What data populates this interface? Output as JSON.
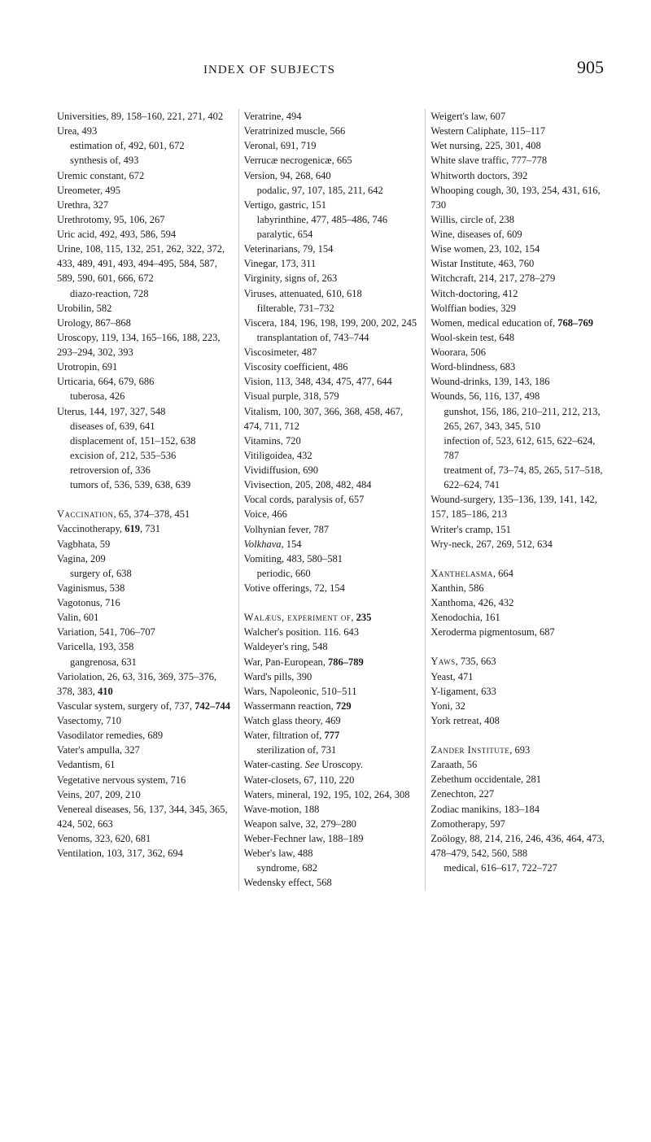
{
  "header": {
    "title": "INDEX OF SUBJECTS",
    "pageNumber": "905"
  },
  "columns": [
    [
      {
        "t": "Universities, 89, 158–160, 221, 271, 402"
      },
      {
        "t": "Urea, 493"
      },
      {
        "t": "estimation of, 492, 601, 672",
        "s": 1
      },
      {
        "t": "synthesis of, 493",
        "s": 1
      },
      {
        "t": "Uremic constant, 672"
      },
      {
        "t": "Ureometer, 495"
      },
      {
        "t": "Urethra, 327"
      },
      {
        "t": "Urethrotomy, 95, 106, 267"
      },
      {
        "t": "Uric acid, 492, 493, 586, 594"
      },
      {
        "t": "Urine, 108, 115, 132, 251, 262, 322, 372, 433, 489, 491, 493, 494–495, 584, 587, 589, 590, 601, 666, 672"
      },
      {
        "t": "diazo-reaction, 728",
        "s": 1
      },
      {
        "t": "Urobilin, 582"
      },
      {
        "t": "Urology, 867–868"
      },
      {
        "t": "Uroscopy, 119, 134, 165–166, 188, 223, 293–294, 302, 393"
      },
      {
        "t": "Urotropin, 691"
      },
      {
        "t": "Urticaria, 664, 679, 686"
      },
      {
        "t": "tuberosa, 426",
        "s": 1
      },
      {
        "t": "Uterus, 144, 197, 327, 548"
      },
      {
        "t": "diseases of, 639, 641",
        "s": 1
      },
      {
        "t": "displacement of, 151–152, 638",
        "s": 1
      },
      {
        "t": "excision of, 212, 535–536",
        "s": 1
      },
      {
        "t": "retroversion of, 336",
        "s": 1
      },
      {
        "t": "tumors of, 536, 539, 638, 639",
        "s": 1
      },
      {
        "gap": 1
      },
      {
        "t": "Vaccination, 65, 374–378, 451",
        "sc": "Vaccination"
      },
      {
        "t": "Vaccinotherapy, 619, 731",
        "bold": [
          "619"
        ]
      },
      {
        "t": "Vagbhata, 59"
      },
      {
        "t": "Vagina, 209"
      },
      {
        "t": "surgery of, 638",
        "s": 1
      },
      {
        "t": "Vaginismus, 538"
      },
      {
        "t": "Vagotonus, 716"
      },
      {
        "t": "Valin, 601"
      },
      {
        "t": "Variation, 541, 706–707"
      },
      {
        "t": "Varicella, 193, 358"
      },
      {
        "t": "gangrenosa, 631",
        "s": 1
      },
      {
        "t": "Variolation, 26, 63, 316, 369, 375–376, 378, 383, 410",
        "bold": [
          "410"
        ]
      },
      {
        "t": "Vascular system, surgery of, 737, 742–744",
        "bold": [
          "742–744"
        ]
      },
      {
        "t": "Vasectomy, 710"
      },
      {
        "t": "Vasodilator remedies, 689"
      },
      {
        "t": "Vater's ampulla, 327"
      },
      {
        "t": "Vedantism, 61"
      },
      {
        "t": "Vegetative nervous system, 716"
      },
      {
        "t": "Veins, 207, 209, 210"
      },
      {
        "t": "Venereal diseases, 56, 137, 344, 345, 365, 424, 502, 663"
      },
      {
        "t": "Venoms, 323, 620, 681"
      },
      {
        "t": "Ventilation, 103, 317, 362, 694"
      }
    ],
    [
      {
        "t": "Veratrine, 494"
      },
      {
        "t": "Veratrinized muscle, 566"
      },
      {
        "t": "Veronal, 691, 719"
      },
      {
        "t": "Verrucæ necrogenicæ, 665"
      },
      {
        "t": "Version, 94, 268, 640"
      },
      {
        "t": "podalic, 97, 107, 185, 211, 642",
        "s": 1
      },
      {
        "t": "Vertigo, gastric, 151"
      },
      {
        "t": "labyrinthine, 477, 485–486, 746",
        "s": 1
      },
      {
        "t": "paralytic, 654",
        "s": 1
      },
      {
        "t": "Veterinarians, 79, 154"
      },
      {
        "t": "Vinegar, 173, 311"
      },
      {
        "t": "Virginity, signs of, 263"
      },
      {
        "t": "Viruses, attenuated, 610, 618"
      },
      {
        "t": "filterable, 731–732",
        "s": 1
      },
      {
        "t": "Viscera, 184, 196, 198, 199, 200, 202, 245"
      },
      {
        "t": "transplantation of, 743–744",
        "s": 1
      },
      {
        "t": "Viscosimeter, 487"
      },
      {
        "t": "Viscosity coefficient, 486"
      },
      {
        "t": "Vision, 113, 348, 434, 475, 477, 644"
      },
      {
        "t": "Visual purple, 318, 579"
      },
      {
        "t": "Vitalism, 100, 307, 366, 368, 458, 467, 474, 711, 712"
      },
      {
        "t": "Vitamins, 720"
      },
      {
        "t": "Vitiligoidea, 432"
      },
      {
        "t": "Vividiffusion, 690"
      },
      {
        "t": "Vivisection, 205, 208, 482, 484"
      },
      {
        "t": "Vocal cords, paralysis of, 657"
      },
      {
        "t": "Voice, 466"
      },
      {
        "t": "Volhynian fever, 787"
      },
      {
        "t": "Volkhava, 154",
        "italic": [
          "Volkhava"
        ]
      },
      {
        "t": "Vomiting, 483, 580–581"
      },
      {
        "t": "periodic, 660",
        "s": 1
      },
      {
        "t": "Votive offerings, 72, 154"
      },
      {
        "gap": 1
      },
      {
        "t": "Walæus, experiment of, 235",
        "sc": "Walæus, experiment of",
        "bold": [
          "235"
        ]
      },
      {
        "t": "Walcher's position. 116. 643"
      },
      {
        "t": "Waldeyer's ring, 548"
      },
      {
        "t": "War, Pan-European, 786–789",
        "bold": [
          "786–789"
        ]
      },
      {
        "t": "Ward's pills, 390"
      },
      {
        "t": "Wars, Napoleonic, 510–511"
      },
      {
        "t": "Wassermann reaction, 729",
        "bold": [
          "729"
        ]
      },
      {
        "t": "Watch glass theory, 469"
      },
      {
        "t": "Water, filtration of, 777",
        "bold": [
          "777"
        ]
      },
      {
        "t": "sterilization of, 731",
        "s": 1
      },
      {
        "t": "Water-casting. See Uroscopy.",
        "italic": [
          "See"
        ]
      },
      {
        "t": "Water-closets, 67, 110, 220"
      },
      {
        "t": "Waters, mineral, 192, 195, 102, 264, 308"
      },
      {
        "t": "Wave-motion, 188"
      },
      {
        "t": "Weapon salve, 32, 279–280"
      },
      {
        "t": "Weber-Fechner law, 188–189"
      },
      {
        "t": "Weber's law, 488"
      },
      {
        "t": "syndrome, 682",
        "s": 1
      },
      {
        "t": "Wedensky effect, 568"
      }
    ],
    [
      {
        "t": "Weigert's law, 607"
      },
      {
        "t": "Western Caliphate, 115–117"
      },
      {
        "t": "Wet nursing, 225, 301, 408"
      },
      {
        "t": "White slave traffic, 777–778"
      },
      {
        "t": "Whitworth doctors, 392"
      },
      {
        "t": "Whooping cough, 30, 193, 254, 431, 616, 730"
      },
      {
        "t": "Willis, circle of, 238"
      },
      {
        "t": "Wine, diseases of, 609"
      },
      {
        "t": "Wise women, 23, 102, 154"
      },
      {
        "t": "Wistar Institute, 463, 760"
      },
      {
        "t": "Witchcraft, 214, 217, 278–279"
      },
      {
        "t": "Witch-doctoring, 412"
      },
      {
        "t": "Wolffian bodies, 329"
      },
      {
        "t": "Women, medical education of, 768–769",
        "bold": [
          "768–769"
        ]
      },
      {
        "t": "Wool-skein test, 648"
      },
      {
        "t": "Woorara, 506"
      },
      {
        "t": "Word-blindness, 683"
      },
      {
        "t": "Wound-drinks, 139, 143, 186"
      },
      {
        "t": "Wounds, 56, 116, 137, 498"
      },
      {
        "t": "gunshot, 156, 186, 210–211, 212, 213, 265, 267, 343, 345, 510",
        "s": 1
      },
      {
        "t": "infection of, 523, 612, 615, 622–624, 787",
        "s": 1
      },
      {
        "t": "treatment of, 73–74, 85, 265, 517–518, 622–624, 741",
        "s": 1
      },
      {
        "t": "Wound-surgery, 135–136, 139, 141, 142, 157, 185–186, 213"
      },
      {
        "t": "Writer's cramp, 151"
      },
      {
        "t": "Wry-neck, 267, 269, 512, 634"
      },
      {
        "gap": 1
      },
      {
        "t": "Xanthelasma, 664",
        "sc": "Xanthelasma"
      },
      {
        "t": "Xanthin, 586"
      },
      {
        "t": "Xanthoma, 426, 432"
      },
      {
        "t": "Xenodochia, 161"
      },
      {
        "t": "Xeroderma pigmentosum, 687"
      },
      {
        "gap": 1
      },
      {
        "t": "Yaws, 735, 663",
        "sc": "Yaws"
      },
      {
        "t": "Yeast, 471"
      },
      {
        "t": "Y-ligament, 633"
      },
      {
        "t": "Yoni, 32"
      },
      {
        "t": "York retreat, 408"
      },
      {
        "gap": 1
      },
      {
        "t": "Zander Institute, 693",
        "sc": "Zander Institute"
      },
      {
        "t": "Zaraath, 56"
      },
      {
        "t": "Zebethum occidentale, 281"
      },
      {
        "t": "Zenechton, 227"
      },
      {
        "t": "Zodiac manikins, 183–184"
      },
      {
        "t": "Zomotherapy, 597"
      },
      {
        "t": "Zoölogy, 88, 214, 216, 246, 436, 464, 473, 478–479, 542, 560, 588"
      },
      {
        "t": "medical, 616–617, 722–727",
        "s": 1
      }
    ]
  ]
}
